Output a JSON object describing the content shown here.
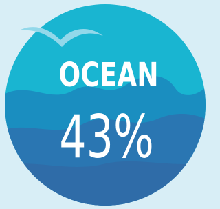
{
  "badge": {
    "label": "OCEAN",
    "value": "43%"
  }
}
